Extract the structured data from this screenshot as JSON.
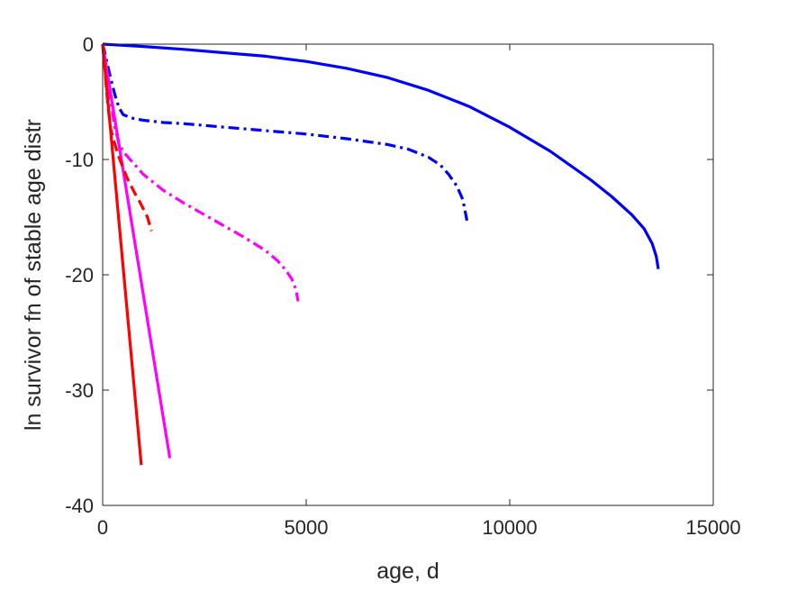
{
  "chart_data": {
    "type": "line",
    "title": "",
    "xlabel": "age, d",
    "ylabel": "ln survivor fn of stable age distr",
    "xlim": [
      0,
      15000
    ],
    "ylim": [
      -40,
      0
    ],
    "xticks": [
      0,
      5000,
      10000,
      15000
    ],
    "xtick_labels": [
      "0",
      "5000",
      "10000",
      "15000"
    ],
    "yticks": [
      0,
      -10,
      -20,
      -30,
      -40
    ],
    "ytick_labels": [
      "0",
      "-10",
      "-20",
      "-30",
      "-40"
    ],
    "grid": false,
    "legend": "none",
    "series": [
      {
        "color": "#0000ff",
        "style": "solid",
        "x": [
          0,
          500,
          1000,
          2000,
          3000,
          4000,
          5000,
          6000,
          7000,
          8000,
          9000,
          10000,
          11000,
          12000,
          12500,
          13000,
          13300,
          13500,
          13600,
          13650
        ],
        "y": [
          0,
          -0.1,
          -0.2,
          -0.45,
          -0.75,
          -1.05,
          -1.5,
          -2.1,
          -2.9,
          -4.0,
          -5.4,
          -7.2,
          -9.3,
          -11.8,
          -13.2,
          -14.8,
          -16.0,
          -17.3,
          -18.4,
          -19.5
        ]
      },
      {
        "color": "#0000ff",
        "style": "dashdot",
        "x": [
          0,
          50,
          100,
          200,
          300,
          400,
          500,
          700,
          1000,
          1500,
          2000,
          3000,
          4000,
          5000,
          6000,
          7000,
          7500,
          8000,
          8300,
          8500,
          8700,
          8850,
          8950
        ],
        "y": [
          0,
          -0.7,
          -1.5,
          -3.0,
          -4.4,
          -5.5,
          -6.1,
          -6.4,
          -6.6,
          -6.8,
          -6.9,
          -7.2,
          -7.5,
          -7.8,
          -8.2,
          -8.7,
          -9.1,
          -9.8,
          -10.5,
          -11.3,
          -12.3,
          -13.5,
          -15.3
        ]
      },
      {
        "color": "#ff00ff",
        "style": "solid",
        "x": [
          0,
          1650
        ],
        "y": [
          0,
          -35.9
        ]
      },
      {
        "color": "#ff00ff",
        "style": "dashdot",
        "x": [
          0,
          100,
          200,
          300,
          400,
          500,
          700,
          1000,
          1500,
          2000,
          2500,
          3000,
          3500,
          4000,
          4300,
          4500,
          4650,
          4750,
          4800
        ],
        "y": [
          0,
          -2.5,
          -5.0,
          -7.2,
          -8.6,
          -9.3,
          -10.1,
          -11.3,
          -12.7,
          -13.8,
          -14.8,
          -15.8,
          -16.8,
          -17.9,
          -18.8,
          -19.6,
          -20.4,
          -21.3,
          -22.3
        ]
      },
      {
        "color": "#ff0000",
        "style": "solid",
        "x": [
          0,
          950
        ],
        "y": [
          0,
          -36.5
        ]
      },
      {
        "color": "#ff0000",
        "style": "dashed",
        "x": [
          0,
          50,
          100,
          150,
          200,
          300,
          400,
          500,
          600,
          700,
          800,
          900,
          1000,
          1100,
          1200
        ],
        "y": [
          0,
          -2.0,
          -4.2,
          -6.0,
          -7.4,
          -8.7,
          -9.8,
          -10.7,
          -11.6,
          -12.3,
          -13.0,
          -13.6,
          -14.3,
          -15.0,
          -16.2
        ]
      }
    ]
  }
}
